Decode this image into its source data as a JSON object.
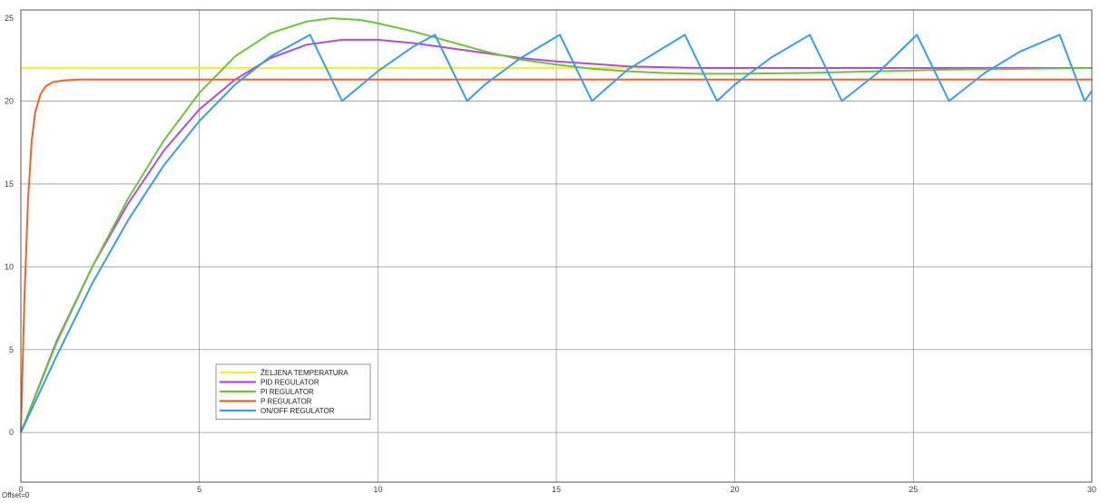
{
  "chart_data": {
    "type": "line",
    "xlim": [
      0,
      30
    ],
    "ylim": [
      -3,
      25.5
    ],
    "x_ticks": [
      0,
      5,
      10,
      15,
      20,
      25,
      30
    ],
    "x_tick_labels": [
      "0",
      "5",
      "10",
      "15",
      "20",
      "25",
      "30"
    ],
    "y_ticks": [
      0,
      5,
      10,
      15,
      20
    ],
    "y_tick_labels": [
      "0",
      "5",
      "10",
      "15",
      "20"
    ],
    "extra_y_tick_labels": [
      {
        "value": 25,
        "label": "25"
      }
    ],
    "grid": true,
    "legend_position": "lower-left",
    "offset_label": "Offset=0",
    "series": [
      {
        "name": "ŽELJENA TEMPERATURA",
        "color": "#f2ef3c",
        "x": [
          0,
          30
        ],
        "y": [
          22,
          22
        ]
      },
      {
        "name": "PID REGULATOR",
        "color": "#b04ddc",
        "x": [
          0,
          1,
          2,
          3,
          4,
          5,
          6,
          7,
          8,
          9,
          10,
          11,
          12,
          13,
          14,
          15,
          16,
          17,
          18,
          19,
          20,
          22,
          24,
          26,
          28,
          30
        ],
        "y": [
          0,
          5.5,
          10.0,
          13.8,
          17.0,
          19.5,
          21.3,
          22.6,
          23.4,
          23.7,
          23.7,
          23.5,
          23.2,
          22.9,
          22.6,
          22.4,
          22.25,
          22.1,
          22.05,
          22.0,
          22.0,
          22.0,
          22.0,
          22.0,
          22.0,
          22.0
        ]
      },
      {
        "name": "PI REGULATOR",
        "color": "#6fc33a",
        "x": [
          0,
          1,
          2,
          3,
          4,
          5,
          6,
          7,
          8,
          8.7,
          9.5,
          10,
          11,
          12,
          13,
          14,
          15,
          16,
          17,
          18,
          19,
          20,
          22,
          24,
          26,
          28,
          30
        ],
        "y": [
          0,
          5.4,
          10.0,
          14.1,
          17.6,
          20.5,
          22.7,
          24.1,
          24.8,
          25.0,
          24.9,
          24.7,
          24.2,
          23.6,
          23.0,
          22.5,
          22.2,
          21.95,
          21.8,
          21.7,
          21.65,
          21.65,
          21.7,
          21.8,
          21.9,
          21.95,
          22.0
        ]
      },
      {
        "name": "P REGULATOR",
        "color": "#f0642a",
        "x": [
          0,
          0.1,
          0.2,
          0.3,
          0.4,
          0.55,
          0.7,
          0.9,
          1.2,
          1.6,
          2,
          30
        ],
        "y": [
          0,
          8,
          14,
          17.5,
          19.3,
          20.4,
          20.9,
          21.15,
          21.25,
          21.3,
          21.3,
          21.3
        ]
      },
      {
        "name": "ON/OFF REGULATOR",
        "color": "#3a9ee0",
        "x": [
          0,
          1,
          2,
          3,
          4,
          5,
          6,
          7,
          8.1,
          9.0,
          10,
          11,
          11.6,
          12.5,
          13,
          14,
          15.1,
          16.0,
          17,
          18.6,
          19.5,
          20,
          21,
          22.1,
          23.0,
          24,
          25.1,
          26.0,
          27,
          28,
          29.1,
          29.8,
          30
        ],
        "y": [
          0,
          4.6,
          9.0,
          12.8,
          16.1,
          18.8,
          21.0,
          22.7,
          24.0,
          20.0,
          21.8,
          23.3,
          24.0,
          20.0,
          21.0,
          22.6,
          24.0,
          20.0,
          21.9,
          24.0,
          20.0,
          21.0,
          22.6,
          24.0,
          20.0,
          21.7,
          24.0,
          20.0,
          21.7,
          23.0,
          24.0,
          20.0,
          20.6
        ]
      }
    ]
  },
  "colors": {
    "axes": "#555555",
    "grid": "#9a9a9a",
    "background": "#ffffff"
  }
}
